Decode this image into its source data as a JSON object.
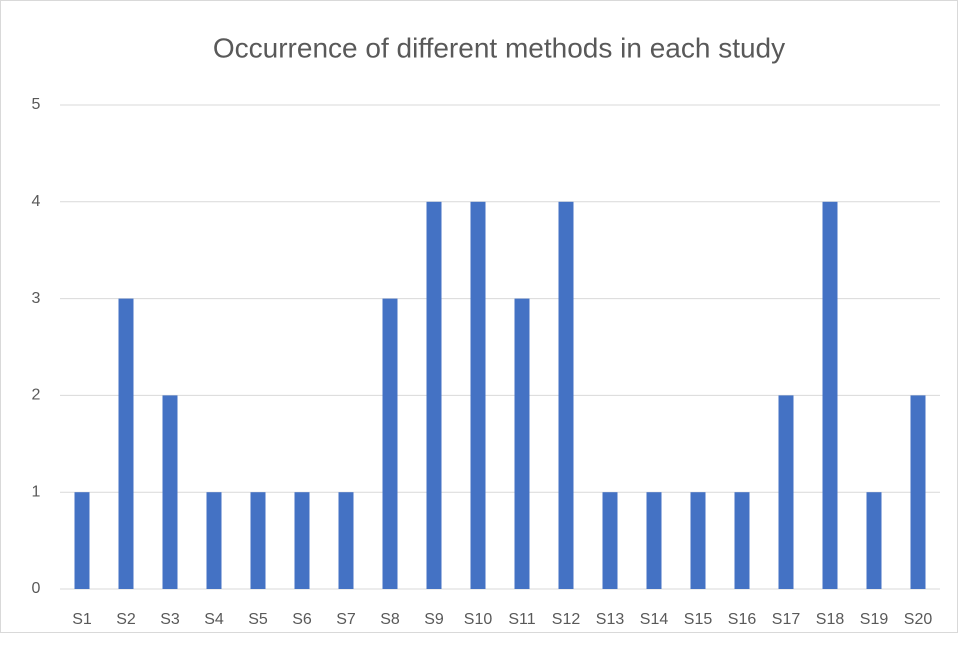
{
  "chart_data": {
    "type": "bar",
    "title": "Occurrence of different methods in each study",
    "categories": [
      "S1",
      "S2",
      "S3",
      "S4",
      "S5",
      "S6",
      "S7",
      "S8",
      "S9",
      "S10",
      "S11",
      "S12",
      "S13",
      "S14",
      "S15",
      "S16",
      "S17",
      "S18",
      "S19",
      "S20"
    ],
    "values": [
      1,
      3,
      2,
      1,
      1,
      1,
      1,
      3,
      4,
      4,
      3,
      4,
      1,
      1,
      1,
      1,
      2,
      4,
      1,
      2
    ],
    "color": "#4472c4",
    "ylim": [
      0,
      5
    ],
    "yticks": [
      0,
      1,
      2,
      3,
      4,
      5
    ],
    "grid": true
  }
}
